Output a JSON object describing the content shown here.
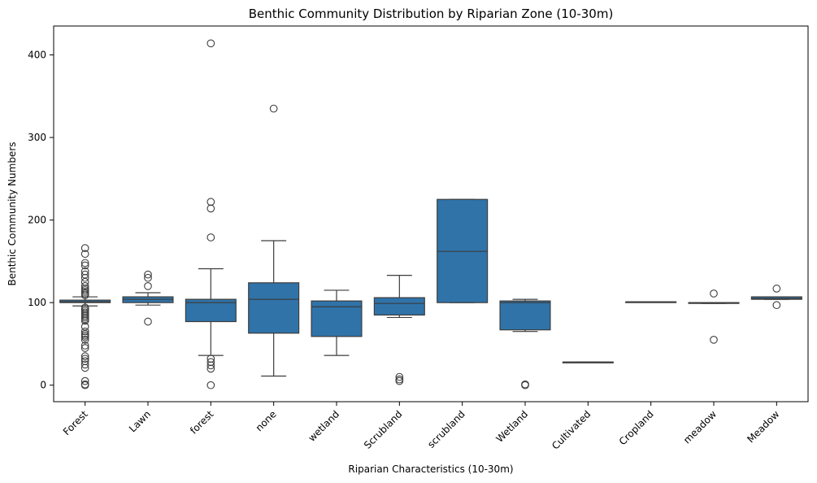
{
  "chart_data": {
    "type": "box",
    "title": "Benthic Community Distribution by Riparian Zone (10-30m)",
    "xlabel": "Riparian Characteristics (10-30m)",
    "ylabel": "Benthic Community Numbers",
    "ylim": [
      -20,
      435
    ],
    "yticks": [
      0,
      100,
      200,
      300,
      400
    ],
    "box_color": "#2f73a9",
    "grid": false,
    "categories": [
      "Forest",
      "Lawn",
      "forest",
      "none",
      "wetland",
      "Scrubland",
      "scrubland",
      "Wetland",
      "Cultivated",
      "Cropland",
      "meadow",
      "Meadow"
    ],
    "boxes": [
      {
        "category": "Forest",
        "q1": 100,
        "median": 101,
        "q3": 103,
        "whislo": 96,
        "whishi": 107,
        "outliers": [
          166,
          159,
          148,
          145,
          138,
          134,
          130,
          125,
          120,
          117,
          115,
          113,
          111,
          109,
          94,
          92,
          90,
          88,
          86,
          84,
          82,
          80,
          78,
          71,
          65,
          62,
          60,
          58,
          55,
          48,
          45,
          35,
          32,
          29,
          25,
          21,
          5,
          1,
          0
        ]
      },
      {
        "category": "Lawn",
        "q1": 100,
        "median": 104,
        "q3": 107,
        "whislo": 97,
        "whishi": 112,
        "outliers": [
          134,
          130,
          120,
          77
        ]
      },
      {
        "category": "forest",
        "q1": 77,
        "median": 100,
        "q3": 104,
        "whislo": 36,
        "whishi": 141,
        "outliers": [
          414,
          222,
          214,
          179,
          32,
          28,
          24,
          20,
          0
        ]
      },
      {
        "category": "none",
        "q1": 63,
        "median": 104,
        "q3": 124,
        "whislo": 11,
        "whishi": 175,
        "outliers": [
          335
        ]
      },
      {
        "category": "wetland",
        "q1": 59,
        "median": 95,
        "q3": 102,
        "whislo": 36,
        "whishi": 115,
        "outliers": []
      },
      {
        "category": "Scrubland",
        "q1": 85,
        "median": 99,
        "q3": 106,
        "whislo": 82,
        "whishi": 133,
        "outliers": [
          10,
          7,
          5
        ]
      },
      {
        "category": "scrubland",
        "q1": 100,
        "median": 162,
        "q3": 225,
        "whislo": 100,
        "whishi": 225,
        "outliers": []
      },
      {
        "category": "Wetland",
        "q1": 67,
        "median": 100,
        "q3": 102,
        "whislo": 65,
        "whishi": 104,
        "outliers": [
          1,
          0
        ]
      },
      {
        "category": "Cultivated",
        "q1": 28,
        "median": 28,
        "q3": 28,
        "whislo": 28,
        "whishi": 28,
        "outliers": []
      },
      {
        "category": "Cropland",
        "q1": 101,
        "median": 101,
        "q3": 101,
        "whislo": 101,
        "whishi": 101,
        "outliers": []
      },
      {
        "category": "meadow",
        "q1": 99,
        "median": 100,
        "q3": 100,
        "whislo": 99,
        "whishi": 100,
        "outliers": [
          111,
          55
        ]
      },
      {
        "category": "Meadow",
        "q1": 104,
        "median": 105,
        "q3": 107,
        "whislo": 104,
        "whishi": 107,
        "outliers": [
          117,
          97
        ]
      }
    ]
  }
}
